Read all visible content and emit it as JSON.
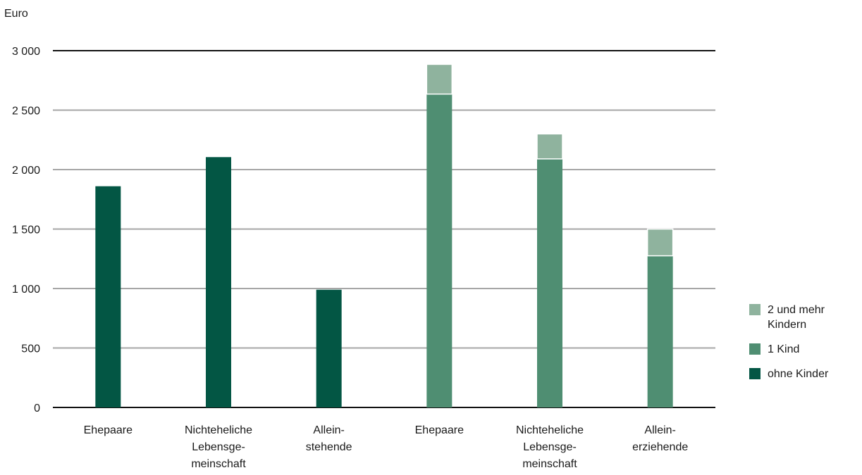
{
  "chart_data": {
    "type": "bar",
    "stacked": true,
    "unit_label": "Euro",
    "ylim": [
      0,
      3000
    ],
    "yticks": [
      "0",
      "500",
      "1 000",
      "1 500",
      "2 000",
      "2 500",
      "3 000"
    ],
    "ytick_values": [
      0,
      500,
      1000,
      1500,
      2000,
      2500,
      3000
    ],
    "grid": true,
    "legend_position": "right",
    "categories": [
      [
        "Ehepaare"
      ],
      [
        "Nichteheliche",
        "Lebensge-",
        "meinschaft"
      ],
      [
        "Allein-",
        "stehende"
      ],
      [
        "Ehepaare"
      ],
      [
        "Nichteheliche",
        "Lebensge-",
        "meinschaft"
      ],
      [
        "Allein-",
        "erziehende"
      ]
    ],
    "series": [
      {
        "name": "ohne Kinder",
        "color": "#035644",
        "values": [
          1860,
          2105,
          990,
          0,
          0,
          0
        ]
      },
      {
        "name": "1 Kind",
        "color": "#4f8e72",
        "values": [
          0,
          0,
          0,
          2635,
          2090,
          1275
        ]
      },
      {
        "name": "2 und mehr Kindern",
        "color": "#8fb39e",
        "values": [
          0,
          0,
          0,
          250,
          210,
          225
        ]
      }
    ]
  },
  "legend": {
    "items": [
      {
        "label": "2 und mehr Kindern",
        "color": "#8fb39e"
      },
      {
        "label": "1 Kind",
        "color": "#4f8e72"
      },
      {
        "label": "ohne Kinder",
        "color": "#035644"
      }
    ]
  }
}
